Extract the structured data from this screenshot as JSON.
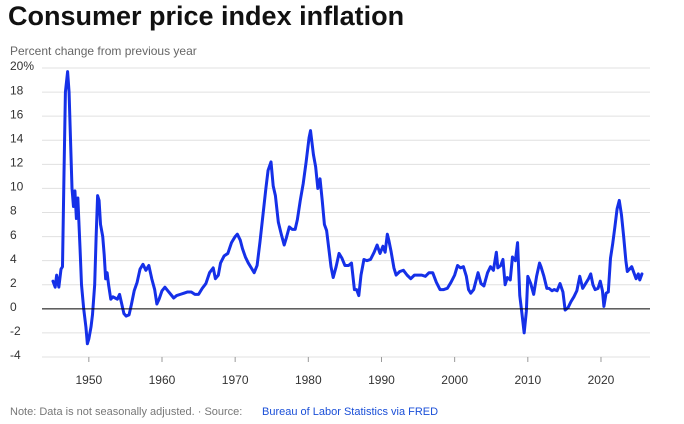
{
  "chart_data": {
    "type": "line",
    "title": "Consumer price index inflation",
    "subtitle": "Percent change from previous year",
    "note": "Note: Data is not seasonally adjusted. · Source:",
    "source": "Bureau of Labor Statistics via FRED",
    "xlim": [
      1943.6,
      2026.7
    ],
    "xticks": [
      1950,
      1960,
      1970,
      1980,
      1990,
      2000,
      2010,
      2020
    ],
    "ylim": [
      -4,
      20
    ],
    "yticks": [
      -4,
      -2,
      0,
      2,
      4,
      6,
      8,
      10,
      12,
      14,
      16,
      18,
      {
        "value": 20,
        "label": "20%"
      }
    ],
    "grid": true,
    "x": [
      1945.1,
      1945.4,
      1945.6,
      1945.9,
      1946.2,
      1946.4,
      1946.6,
      1946.8,
      1947.1,
      1947.3,
      1947.5,
      1947.7,
      1947.9,
      1948.1,
      1948.3,
      1948.5,
      1948.8,
      1949.0,
      1949.3,
      1949.6,
      1949.8,
      1950.0,
      1950.3,
      1950.5,
      1950.8,
      1951.0,
      1951.2,
      1951.4,
      1951.6,
      1951.9,
      1952.1,
      1952.3,
      1952.5,
      1952.7,
      1953.0,
      1953.3,
      1953.6,
      1953.9,
      1954.2,
      1954.5,
      1954.8,
      1955.1,
      1955.5,
      1955.8,
      1956.2,
      1956.6,
      1957.0,
      1957.4,
      1957.8,
      1958.2,
      1958.6,
      1959.0,
      1959.3,
      1959.6,
      1960.0,
      1960.4,
      1960.8,
      1961.2,
      1961.6,
      1962.0,
      1962.5,
      1963.0,
      1963.5,
      1964.0,
      1964.5,
      1965.0,
      1965.5,
      1966.0,
      1966.5,
      1967.0,
      1967.3,
      1967.7,
      1968.0,
      1968.5,
      1969.0,
      1969.5,
      1970.0,
      1970.3,
      1970.7,
      1971.0,
      1971.4,
      1971.8,
      1972.2,
      1972.6,
      1973.0,
      1973.4,
      1973.8,
      1974.2,
      1974.5,
      1974.9,
      1975.2,
      1975.5,
      1975.9,
      1976.3,
      1976.7,
      1977.0,
      1977.4,
      1977.8,
      1978.2,
      1978.5,
      1978.9,
      1979.3,
      1979.7,
      1980.1,
      1980.3,
      1980.7,
      1981.0,
      1981.3,
      1981.6,
      1981.9,
      1982.2,
      1982.5,
      1982.8,
      1983.1,
      1983.4,
      1983.8,
      1984.2,
      1984.6,
      1985.0,
      1985.5,
      1985.9,
      1986.3,
      1986.6,
      1986.9,
      1987.2,
      1987.6,
      1988.0,
      1988.5,
      1989.0,
      1989.4,
      1989.8,
      1990.2,
      1990.5,
      1990.8,
      1991.0,
      1991.3,
      1991.7,
      1992.0,
      1992.5,
      1993.0,
      1993.5,
      1994.0,
      1994.5,
      1995.0,
      1995.5,
      1996.0,
      1996.5,
      1997.0,
      1997.5,
      1998.0,
      1998.5,
      1999.0,
      1999.5,
      2000.0,
      2000.4,
      2000.8,
      2001.2,
      2001.6,
      2001.9,
      2002.2,
      2002.6,
      2002.9,
      2003.2,
      2003.6,
      2004.0,
      2004.5,
      2004.9,
      2005.3,
      2005.7,
      2005.9,
      2006.3,
      2006.6,
      2006.9,
      2007.2,
      2007.6,
      2007.9,
      2008.3,
      2008.6,
      2008.9,
      2009.2,
      2009.5,
      2009.8,
      2010.0,
      2010.4,
      2010.8,
      2011.2,
      2011.6,
      2011.8,
      2012.2,
      2012.6,
      2012.9,
      2013.3,
      2013.6,
      2014.0,
      2014.4,
      2014.8,
      2015.1,
      2015.5,
      2015.9,
      2016.3,
      2016.7,
      2017.1,
      2017.5,
      2017.9,
      2018.3,
      2018.6,
      2018.9,
      2019.2,
      2019.6,
      2019.9,
      2020.2,
      2020.4,
      2020.7,
      2021.0,
      2021.3,
      2021.6,
      2021.9,
      2022.2,
      2022.5,
      2022.8,
      2023.1,
      2023.4,
      2023.6,
      2023.9,
      2024.2,
      2024.5,
      2024.8,
      2025.1,
      2025.3,
      2025.6
    ],
    "series": [
      {
        "name": "CPI inflation",
        "color": "#1530e8",
        "values": [
          2.3,
          1.8,
          2.8,
          1.8,
          3.3,
          3.5,
          11,
          18,
          19.7,
          18,
          14,
          10,
          8.5,
          9.8,
          7.5,
          9.2,
          5,
          2,
          0,
          -1.5,
          -2.9,
          -2.5,
          -1.5,
          -0.5,
          2,
          6,
          9.4,
          9.0,
          7,
          6,
          4.5,
          2.5,
          3,
          2,
          0.8,
          1,
          0.9,
          0.8,
          1.2,
          0.4,
          -0.4,
          -0.6,
          -0.5,
          0.3,
          1.5,
          2.2,
          3.3,
          3.7,
          3.2,
          3.6,
          2.5,
          1.6,
          0.4,
          0.8,
          1.5,
          1.8,
          1.5,
          1.2,
          0.9,
          1.1,
          1.2,
          1.3,
          1.4,
          1.4,
          1.2,
          1.2,
          1.7,
          2.1,
          3.0,
          3.4,
          2.5,
          2.8,
          3.8,
          4.4,
          4.6,
          5.5,
          6.0,
          6.2,
          5.7,
          5.0,
          4.3,
          3.8,
          3.4,
          3.0,
          3.6,
          5.6,
          7.8,
          10,
          11.5,
          12.2,
          10.2,
          9.4,
          7.2,
          6.2,
          5.3,
          5.9,
          6.8,
          6.6,
          6.6,
          7.4,
          9,
          10.4,
          12.2,
          14.2,
          14.8,
          12.8,
          11.8,
          10,
          10.8,
          9,
          7,
          6.5,
          5,
          3.5,
          2.6,
          3.5,
          4.6,
          4.2,
          3.6,
          3.6,
          3.8,
          1.6,
          1.6,
          1.1,
          2.8,
          4.1,
          4.0,
          4.1,
          4.7,
          5.3,
          4.6,
          5.2,
          4.7,
          6.2,
          5.7,
          4.8,
          3.4,
          2.8,
          3.1,
          3.2,
          2.8,
          2.5,
          2.8,
          2.8,
          2.8,
          2.7,
          3.0,
          3.0,
          2.2,
          1.6,
          1.6,
          1.7,
          2.2,
          2.8,
          3.6,
          3.4,
          3.5,
          2.7,
          1.6,
          1.3,
          1.6,
          2.3,
          3.0,
          2.1,
          1.9,
          3.0,
          3.5,
          3.2,
          4.7,
          3.4,
          3.6,
          4.1,
          2.0,
          2.6,
          2.4,
          4.3,
          4.0,
          5.5,
          1.1,
          -0.4,
          -2.0,
          -0.2,
          2.7,
          2.1,
          1.2,
          2.7,
          3.8,
          3.5,
          2.7,
          1.7,
          1.7,
          1.5,
          1.6,
          1.5,
          2.1,
          1.4,
          -0.1,
          0.1,
          0.6,
          1.0,
          1.5,
          2.7,
          1.7,
          2.1,
          2.5,
          2.9,
          2.0,
          1.6,
          1.7,
          2.3,
          1.5,
          0.2,
          1.3,
          1.4,
          4.2,
          5.4,
          6.8,
          8.3,
          9.0,
          7.8,
          6.0,
          4.0,
          3.1,
          3.3,
          3.5,
          3.0,
          2.5,
          2.9,
          2.4,
          2.9
        ]
      }
    ]
  }
}
